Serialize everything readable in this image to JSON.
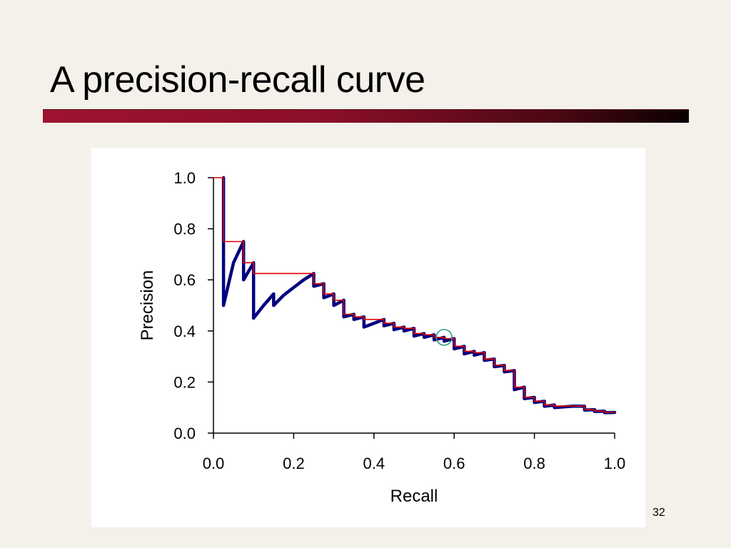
{
  "slide": {
    "title": "A precision-recall curve",
    "page_number": "32"
  },
  "colors": {
    "background": "#f3f1ea",
    "bar_start": "#9e1330",
    "bar_end": "#0a0000",
    "curve": "#000080",
    "interpolated": "#e00000",
    "marker": "#2a9a8a"
  },
  "chart_data": {
    "type": "line",
    "title": "",
    "xlabel": "Recall",
    "ylabel": "Precision",
    "xlim": [
      0.0,
      1.0
    ],
    "ylim": [
      0.0,
      1.0
    ],
    "xticks": [
      "0.0",
      "0.2",
      "0.4",
      "0.6",
      "0.8",
      "1.0"
    ],
    "yticks": [
      "0.0",
      "0.2",
      "0.4",
      "0.6",
      "0.8",
      "1.0"
    ],
    "grid": false,
    "series": [
      {
        "style": "thick-navy",
        "points": [
          [
            0.025,
            1.0
          ],
          [
            0.025,
            0.5
          ],
          [
            0.05,
            0.667
          ],
          [
            0.075,
            0.75
          ],
          [
            0.075,
            0.6
          ],
          [
            0.1,
            0.667
          ],
          [
            0.1,
            0.45
          ],
          [
            0.125,
            0.5
          ],
          [
            0.15,
            0.545
          ],
          [
            0.15,
            0.5
          ],
          [
            0.175,
            0.54
          ],
          [
            0.2,
            0.57
          ],
          [
            0.225,
            0.6
          ],
          [
            0.25,
            0.625
          ],
          [
            0.25,
            0.575
          ],
          [
            0.275,
            0.585
          ],
          [
            0.275,
            0.53
          ],
          [
            0.3,
            0.545
          ],
          [
            0.3,
            0.5
          ],
          [
            0.325,
            0.52
          ],
          [
            0.325,
            0.455
          ],
          [
            0.35,
            0.465
          ],
          [
            0.35,
            0.445
          ],
          [
            0.375,
            0.455
          ],
          [
            0.375,
            0.415
          ],
          [
            0.4,
            0.43
          ],
          [
            0.425,
            0.445
          ],
          [
            0.425,
            0.42
          ],
          [
            0.45,
            0.43
          ],
          [
            0.45,
            0.405
          ],
          [
            0.475,
            0.415
          ],
          [
            0.475,
            0.4
          ],
          [
            0.5,
            0.41
          ],
          [
            0.5,
            0.38
          ],
          [
            0.525,
            0.39
          ],
          [
            0.525,
            0.375
          ],
          [
            0.55,
            0.385
          ],
          [
            0.55,
            0.365
          ],
          [
            0.575,
            0.375
          ],
          [
            0.575,
            0.36
          ],
          [
            0.6,
            0.37
          ],
          [
            0.6,
            0.33
          ],
          [
            0.625,
            0.34
          ],
          [
            0.625,
            0.31
          ],
          [
            0.65,
            0.32
          ],
          [
            0.65,
            0.305
          ],
          [
            0.675,
            0.315
          ],
          [
            0.675,
            0.285
          ],
          [
            0.7,
            0.29
          ],
          [
            0.7,
            0.26
          ],
          [
            0.725,
            0.265
          ],
          [
            0.725,
            0.24
          ],
          [
            0.75,
            0.245
          ],
          [
            0.75,
            0.17
          ],
          [
            0.775,
            0.18
          ],
          [
            0.775,
            0.135
          ],
          [
            0.8,
            0.14
          ],
          [
            0.8,
            0.12
          ],
          [
            0.825,
            0.125
          ],
          [
            0.825,
            0.105
          ],
          [
            0.85,
            0.11
          ],
          [
            0.85,
            0.1
          ],
          [
            0.875,
            0.103
          ],
          [
            0.9,
            0.106
          ],
          [
            0.925,
            0.105
          ],
          [
            0.925,
            0.09
          ],
          [
            0.95,
            0.092
          ],
          [
            0.95,
            0.085
          ],
          [
            0.975,
            0.086
          ],
          [
            0.975,
            0.08
          ],
          [
            1.0,
            0.081
          ]
        ]
      },
      {
        "style": "thin-red-step",
        "points": [
          [
            0.0,
            1.0
          ],
          [
            0.025,
            1.0
          ],
          [
            0.025,
            0.75
          ],
          [
            0.075,
            0.75
          ],
          [
            0.075,
            0.667
          ],
          [
            0.1,
            0.667
          ],
          [
            0.1,
            0.625
          ],
          [
            0.25,
            0.625
          ],
          [
            0.25,
            0.585
          ],
          [
            0.275,
            0.585
          ],
          [
            0.275,
            0.545
          ],
          [
            0.3,
            0.545
          ],
          [
            0.3,
            0.52
          ],
          [
            0.325,
            0.52
          ],
          [
            0.325,
            0.465
          ],
          [
            0.35,
            0.465
          ],
          [
            0.35,
            0.455
          ],
          [
            0.375,
            0.455
          ],
          [
            0.375,
            0.445
          ],
          [
            0.425,
            0.445
          ],
          [
            0.425,
            0.43
          ],
          [
            0.45,
            0.43
          ],
          [
            0.45,
            0.415
          ],
          [
            0.475,
            0.415
          ],
          [
            0.475,
            0.41
          ],
          [
            0.5,
            0.41
          ],
          [
            0.5,
            0.39
          ],
          [
            0.525,
            0.39
          ],
          [
            0.525,
            0.385
          ],
          [
            0.55,
            0.385
          ],
          [
            0.55,
            0.375
          ],
          [
            0.575,
            0.375
          ],
          [
            0.575,
            0.37
          ],
          [
            0.6,
            0.37
          ],
          [
            0.6,
            0.34
          ],
          [
            0.625,
            0.34
          ],
          [
            0.625,
            0.32
          ],
          [
            0.65,
            0.32
          ],
          [
            0.65,
            0.315
          ],
          [
            0.675,
            0.315
          ],
          [
            0.675,
            0.29
          ],
          [
            0.7,
            0.29
          ],
          [
            0.7,
            0.265
          ],
          [
            0.725,
            0.265
          ],
          [
            0.725,
            0.245
          ],
          [
            0.75,
            0.245
          ],
          [
            0.75,
            0.18
          ],
          [
            0.775,
            0.18
          ],
          [
            0.775,
            0.14
          ],
          [
            0.8,
            0.14
          ],
          [
            0.8,
            0.125
          ],
          [
            0.825,
            0.125
          ],
          [
            0.825,
            0.11
          ],
          [
            0.85,
            0.11
          ],
          [
            0.85,
            0.106
          ],
          [
            0.925,
            0.106
          ],
          [
            0.925,
            0.092
          ],
          [
            0.95,
            0.092
          ],
          [
            0.95,
            0.086
          ],
          [
            0.975,
            0.086
          ],
          [
            0.975,
            0.081
          ],
          [
            1.0,
            0.081
          ]
        ]
      }
    ],
    "annotations": [
      {
        "type": "circle-marker",
        "x": 0.575,
        "y": 0.375
      }
    ]
  }
}
